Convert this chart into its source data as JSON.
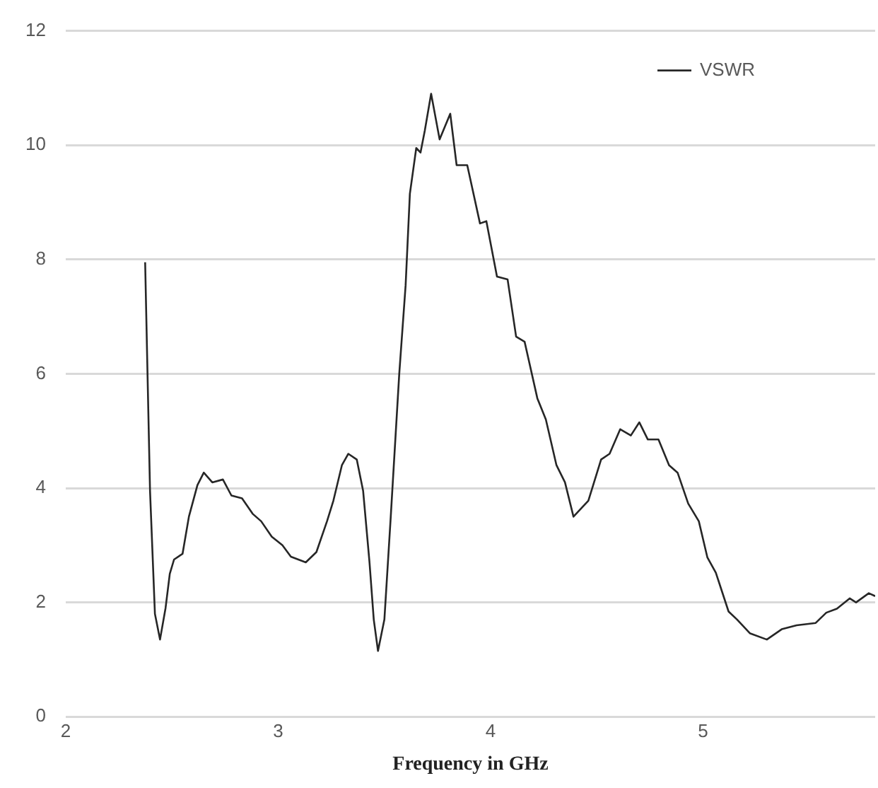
{
  "chart_data": {
    "type": "line",
    "xlabel": "Frequency in GHz",
    "xlim": [
      2,
      5.81
    ],
    "xticks": [
      2,
      3,
      4,
      5
    ],
    "ylim": [
      0,
      12
    ],
    "yticks": [
      0,
      2,
      4,
      6,
      8,
      10,
      12
    ],
    "grid": "y",
    "legend": "top right",
    "marker": "none",
    "line_style": "solid",
    "series": [
      {
        "name": "VSWR",
        "color": "#262626",
        "x": [
          2.374,
          2.386,
          2.397,
          2.42,
          2.444,
          2.47,
          2.49,
          2.51,
          2.55,
          2.58,
          2.62,
          2.65,
          2.69,
          2.74,
          2.78,
          2.83,
          2.88,
          2.92,
          2.97,
          3.02,
          3.06,
          3.13,
          3.18,
          3.23,
          3.26,
          3.3,
          3.33,
          3.37,
          3.4,
          3.43,
          3.45,
          3.47,
          3.5,
          3.53,
          3.57,
          3.6,
          3.62,
          3.65,
          3.67,
          3.69,
          3.72,
          3.76,
          3.81,
          3.84,
          3.89,
          3.95,
          3.98,
          4.03,
          4.08,
          4.12,
          4.16,
          4.22,
          4.26,
          4.31,
          4.35,
          4.39,
          4.46,
          4.52,
          4.56,
          4.61,
          4.66,
          4.7,
          4.74,
          4.79,
          4.84,
          4.88,
          4.93,
          4.98,
          5.02,
          5.06,
          5.12,
          5.16,
          5.22,
          5.3,
          5.37,
          5.44,
          5.53,
          5.58,
          5.63,
          5.69,
          5.72,
          5.78,
          5.81
        ],
        "values": [
          7.95,
          5.85,
          3.95,
          1.8,
          1.35,
          1.9,
          2.5,
          2.75,
          2.85,
          3.5,
          4.05,
          4.27,
          4.1,
          4.15,
          3.87,
          3.82,
          3.55,
          3.42,
          3.15,
          3.0,
          2.8,
          2.7,
          2.88,
          3.42,
          3.78,
          4.4,
          4.6,
          4.5,
          3.95,
          2.7,
          1.7,
          1.15,
          1.7,
          3.5,
          6.0,
          7.55,
          9.15,
          9.95,
          9.87,
          10.25,
          10.9,
          10.1,
          10.55,
          9.65,
          9.65,
          8.63,
          8.67,
          7.7,
          7.65,
          6.65,
          6.56,
          5.57,
          5.2,
          4.4,
          4.1,
          3.5,
          3.78,
          4.5,
          4.6,
          5.03,
          4.92,
          5.15,
          4.85,
          4.85,
          4.4,
          4.27,
          3.73,
          3.42,
          2.79,
          2.52,
          1.84,
          1.7,
          1.46,
          1.35,
          1.53,
          1.6,
          1.64,
          1.82,
          1.89,
          2.07,
          2.0,
          2.16,
          2.11
        ]
      }
    ]
  }
}
